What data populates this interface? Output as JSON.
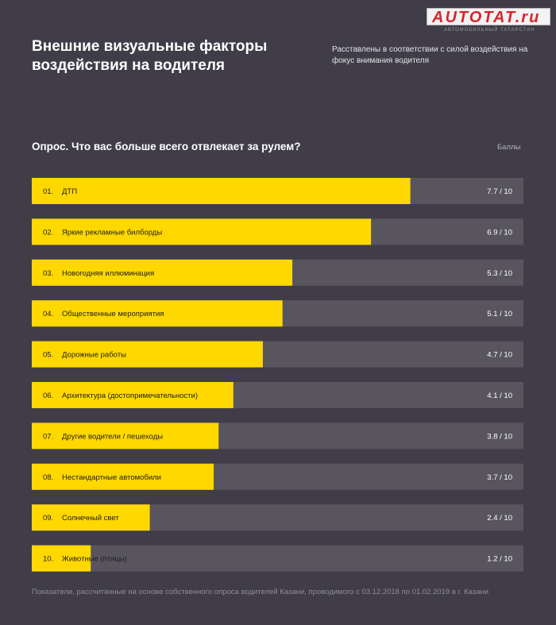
{
  "logo": {
    "text": "AUTOTAT.ru",
    "tagline": "АВТОМОБИЛЬНЫЙ ТАТАРСТАН"
  },
  "title": "Внешние визуальные факторы воздействия на водителя",
  "subtitle": "Расставлены в соответствии с силой воздействия на фокус внимания водителя",
  "question": "Опрос. Что вас больше всего отвлекает за рулем?",
  "unit_label": "Баллы",
  "footnote": "Показатели, рассчитанные на основе собственного опроса водителей Казани, проводимого с 03.12.2018 по 01.02.2019 в г. Казани",
  "colors": {
    "background": "#403d48",
    "bar_fill": "#ffd800",
    "bar_track": "#58555f",
    "label_dark": "#1e1c22",
    "label_light": "#ffffff"
  },
  "chart_data": {
    "type": "bar",
    "orientation": "horizontal",
    "xlim": [
      0,
      10
    ],
    "grid": false,
    "numbers": [
      "01.",
      "02.",
      "03.",
      "04.",
      "05.",
      "06.",
      "07.",
      "08.",
      "09.",
      "10."
    ],
    "categories": [
      "ДТП",
      "Яркие рекламные билборды",
      "Новогодняя иллюминация",
      "Общественные мероприятия",
      "Дорожные работы",
      "Архитектура (достопримечательности)",
      "Другие водители / пешеходы",
      "Нестандартные автомобили",
      "Солнечный свет",
      "Животные (птицы)"
    ],
    "values": [
      7.7,
      6.9,
      5.3,
      5.1,
      4.7,
      4.1,
      3.8,
      3.7,
      2.4,
      1.2
    ],
    "value_labels": [
      "7.7 / 10",
      "6.9 / 10",
      "5.3 / 10",
      "5.1 / 10",
      "4.7 / 10",
      "4.1 / 10",
      "3.8 / 10",
      "3.7 / 10",
      "2.4 / 10",
      "1.2 / 10"
    ]
  }
}
